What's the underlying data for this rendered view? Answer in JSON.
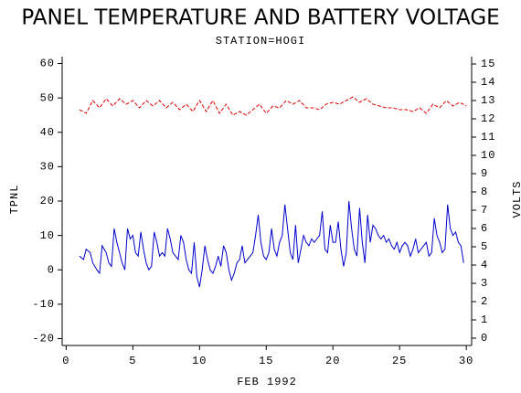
{
  "chart_data": {
    "type": "line",
    "title": "PANEL TEMPERATURE AND BATTERY VOLTAGE",
    "subtitle": "STATION=HOGI",
    "xlabel": "FEB 1992",
    "ylabel": "TPNL",
    "y2label": "VOLTS",
    "xlim": [
      -0.3,
      30.4
    ],
    "xticks": [
      0,
      5,
      10,
      15,
      20,
      25,
      30
    ],
    "ylim": [
      -22,
      62
    ],
    "yticks": [
      -20,
      -10,
      0,
      10,
      20,
      30,
      40,
      50,
      60
    ],
    "y2lim": [
      -0.4,
      15.4
    ],
    "y2ticks": [
      0,
      1,
      2,
      3,
      4,
      5,
      6,
      7,
      8,
      9,
      10,
      11,
      12,
      13,
      14,
      15
    ],
    "series": [
      {
        "color": "#0000cc",
        "x": [
          1,
          1.3,
          1.5,
          1.8,
          2,
          2.3,
          2.5,
          2.7,
          3,
          3.2,
          3.4,
          3.6,
          3.8,
          4,
          4.2,
          4.4,
          4.6,
          4.8,
          5,
          5.2,
          5.4,
          5.6,
          5.8,
          6,
          6.2,
          6.4,
          6.6,
          6.8,
          7,
          7.2,
          7.4,
          7.6,
          7.8,
          8,
          8.2,
          8.4,
          8.6,
          8.8,
          9,
          9.2,
          9.4,
          9.6,
          9.8,
          10,
          10.2,
          10.4,
          10.6,
          10.8,
          11,
          11.2,
          11.4,
          11.6,
          11.8,
          12,
          12.2,
          12.4,
          12.6,
          12.8,
          13,
          13.2,
          13.4,
          13.6,
          13.8,
          14,
          14.2,
          14.4,
          14.6,
          14.8,
          15,
          15.2,
          15.4,
          15.6,
          15.8,
          16,
          16.2,
          16.4,
          16.6,
          16.8,
          17,
          17.2,
          17.4,
          17.6,
          17.8,
          18,
          18.2,
          18.4,
          18.6,
          18.8,
          19,
          19.2,
          19.4,
          19.6,
          19.8,
          20,
          20.2,
          20.4,
          20.6,
          20.8,
          21,
          21.2,
          21.4,
          21.6,
          21.8,
          22,
          22.2,
          22.4,
          22.6,
          22.8,
          23,
          23.2,
          23.4,
          23.6,
          23.8,
          24,
          24.2,
          24.4,
          24.6,
          24.8,
          25,
          25.2,
          25.4,
          25.6,
          25.8,
          26,
          26.2,
          26.4,
          26.6,
          26.8,
          27,
          27.2,
          27.4,
          27.6,
          27.8,
          28,
          28.2,
          28.4,
          28.6,
          28.8,
          29,
          29.2,
          29.4,
          29.6,
          29.8
        ],
        "values": [
          4,
          3,
          6,
          5,
          2,
          0,
          -1,
          7,
          5,
          2,
          1,
          12,
          8,
          5,
          2,
          0,
          12,
          9,
          10,
          5,
          4,
          11,
          6,
          2,
          0,
          1,
          11,
          8,
          4,
          5,
          4,
          12,
          9,
          5,
          4,
          3,
          10,
          8,
          3,
          0,
          -1,
          8,
          -2,
          -5,
          0,
          7,
          3,
          0,
          -1,
          1,
          4,
          1,
          7,
          5,
          0,
          -3,
          -1,
          2,
          3,
          7,
          2,
          3,
          4,
          5,
          10,
          16,
          8,
          4,
          3,
          5,
          12,
          6,
          4,
          8,
          10,
          19,
          12,
          5,
          3,
          13,
          2,
          6,
          10,
          8,
          7,
          9,
          8,
          9,
          10,
          17,
          6,
          5,
          13,
          8,
          8,
          14,
          6,
          1,
          5,
          20,
          12,
          6,
          4,
          18,
          8,
          2,
          16,
          8,
          13,
          12,
          10,
          9,
          10,
          8,
          9,
          7,
          6,
          8,
          5,
          7,
          8,
          7,
          4,
          6,
          9,
          5,
          6,
          7,
          8,
          4,
          5,
          15,
          10,
          8,
          5,
          6,
          19,
          12,
          10,
          11,
          8,
          7,
          2
        ]
      },
      {
        "color": "#dd0000",
        "axis": "y2",
        "x": [
          1,
          1.5,
          2,
          2.5,
          3,
          3.5,
          4,
          4.5,
          5,
          5.5,
          6,
          6.5,
          7,
          7.5,
          8,
          8.5,
          9,
          9.5,
          10,
          10.5,
          11,
          11.5,
          12,
          12.5,
          13,
          13.5,
          14,
          14.5,
          15,
          15.5,
          16,
          16.5,
          17,
          17.5,
          18,
          18.5,
          19,
          19.5,
          20,
          20.5,
          21,
          21.5,
          22,
          22.5,
          23,
          23.5,
          24,
          24.5,
          25,
          25.5,
          26,
          26.5,
          27,
          27.5,
          28,
          28.5,
          29,
          29.5,
          30
        ],
        "values": [
          12.5,
          12.3,
          13.0,
          12.6,
          13.1,
          12.7,
          13.1,
          12.8,
          13.0,
          12.6,
          13.0,
          12.7,
          13.0,
          12.6,
          12.9,
          12.5,
          12.8,
          12.4,
          13.0,
          12.4,
          13.0,
          12.3,
          12.8,
          12.2,
          12.4,
          12.2,
          12.5,
          12.8,
          12.3,
          12.7,
          12.6,
          13.0,
          12.8,
          13.0,
          12.6,
          12.6,
          12.5,
          12.8,
          12.9,
          12.8,
          13.0,
          13.2,
          12.9,
          13.1,
          12.8,
          12.7,
          12.6,
          12.6,
          12.5,
          12.5,
          12.4,
          12.6,
          12.3,
          12.8,
          12.6,
          13.0,
          12.7,
          12.9,
          12.7
        ]
      }
    ]
  }
}
